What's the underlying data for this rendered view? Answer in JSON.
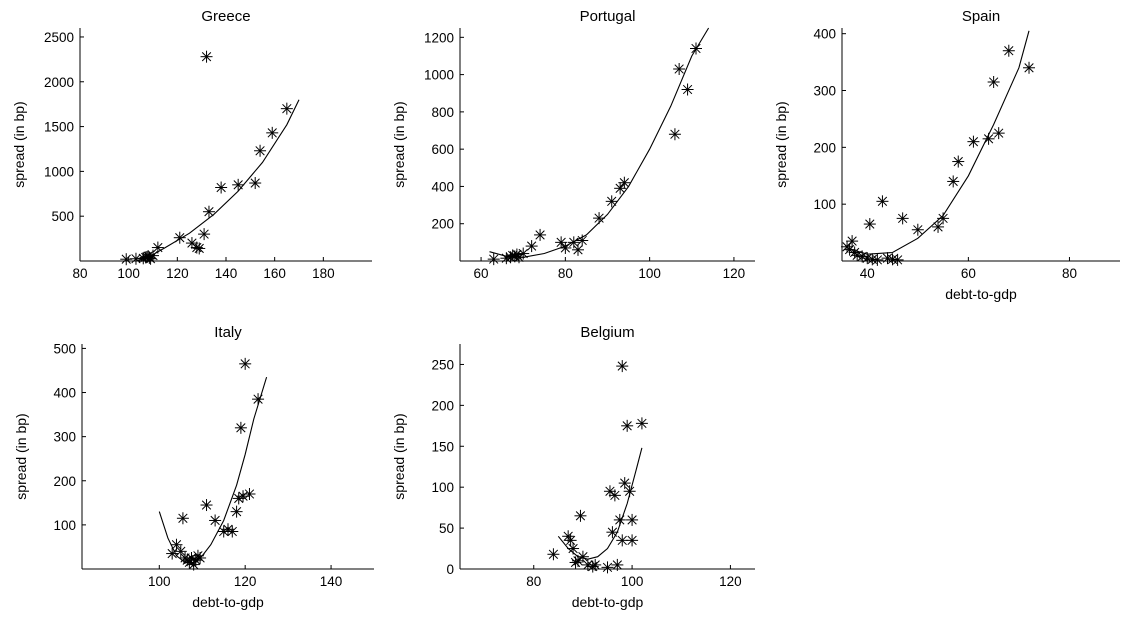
{
  "chart_data": [
    {
      "type": "scatter",
      "title": "Greece",
      "xlabel": "",
      "ylabel": "spread (in bp)",
      "xlim": [
        80,
        200
      ],
      "ylim": [
        0,
        2600
      ],
      "xticks": [
        80,
        100,
        120,
        140,
        160,
        180
      ],
      "yticks": [
        500,
        1000,
        1500,
        2000,
        2500
      ],
      "series": [
        {
          "marker": "asterisk",
          "points": [
            [
              99,
              20
            ],
            [
              103,
              25
            ],
            [
              106,
              30
            ],
            [
              107,
              40
            ],
            [
              107.5,
              45
            ],
            [
              108,
              55
            ],
            [
              108.5,
              35
            ],
            [
              109,
              25
            ],
            [
              110,
              60
            ],
            [
              112,
              150
            ],
            [
              121,
              260
            ],
            [
              126,
              200
            ],
            [
              128,
              150
            ],
            [
              129,
              140
            ],
            [
              131,
              300
            ],
            [
              133,
              550
            ],
            [
              132,
              2280
            ],
            [
              138,
              820
            ],
            [
              145,
              850
            ],
            [
              152,
              870
            ],
            [
              154,
              1230
            ],
            [
              159,
              1430
            ],
            [
              165,
              1700
            ]
          ]
        },
        {
          "type": "line",
          "points": [
            [
              103,
              0
            ],
            [
              108,
              40
            ],
            [
              115,
              150
            ],
            [
              125,
              310
            ],
            [
              135,
              520
            ],
            [
              145,
              780
            ],
            [
              155,
              1100
            ],
            [
              165,
              1520
            ],
            [
              170,
              1800
            ]
          ]
        }
      ]
    },
    {
      "type": "scatter",
      "title": "Portugal",
      "xlabel": "",
      "ylabel": "spread (in bp)",
      "xlim": [
        55,
        125
      ],
      "ylim": [
        0,
        1250
      ],
      "xticks": [
        60,
        80,
        100,
        120
      ],
      "yticks": [
        200,
        400,
        600,
        800,
        1000,
        1200
      ],
      "series": [
        {
          "marker": "asterisk",
          "points": [
            [
              63,
              10
            ],
            [
              66,
              15
            ],
            [
              67,
              20
            ],
            [
              67.5,
              30
            ],
            [
              68,
              25
            ],
            [
              68.5,
              35
            ],
            [
              69,
              20
            ],
            [
              70,
              40
            ],
            [
              72,
              80
            ],
            [
              74,
              140
            ],
            [
              79,
              100
            ],
            [
              80,
              70
            ],
            [
              82,
              100
            ],
            [
              83,
              60
            ],
            [
              84,
              110
            ],
            [
              88,
              230
            ],
            [
              91,
              320
            ],
            [
              93,
              390
            ],
            [
              94,
              420
            ],
            [
              106,
              680
            ],
            [
              107,
              1030
            ],
            [
              109,
              920
            ],
            [
              111,
              1140
            ]
          ]
        },
        {
          "type": "line",
          "points": [
            [
              62,
              50
            ],
            [
              66,
              25
            ],
            [
              70,
              20
            ],
            [
              75,
              40
            ],
            [
              80,
              80
            ],
            [
              85,
              140
            ],
            [
              90,
              250
            ],
            [
              95,
              400
            ],
            [
              100,
              600
            ],
            [
              105,
              830
            ],
            [
              110,
              1100
            ],
            [
              114,
              1250
            ]
          ]
        }
      ]
    },
    {
      "type": "scatter",
      "title": "Spain",
      "xlabel": "debt-to-gdp",
      "ylabel": "spread (in bp)",
      "xlim": [
        35,
        90
      ],
      "ylim": [
        0,
        410
      ],
      "xticks": [
        40,
        60,
        80
      ],
      "yticks": [
        100,
        200,
        300,
        400
      ],
      "series": [
        {
          "marker": "asterisk",
          "points": [
            [
              36,
              25
            ],
            [
              36.5,
              20
            ],
            [
              37,
              35
            ],
            [
              37.5,
              15
            ],
            [
              38,
              10
            ],
            [
              39,
              8
            ],
            [
              40,
              5
            ],
            [
              40.5,
              65
            ],
            [
              41,
              3
            ],
            [
              42,
              2
            ],
            [
              43,
              105
            ],
            [
              44,
              5
            ],
            [
              45,
              3
            ],
            [
              46,
              2
            ],
            [
              47,
              75
            ],
            [
              50,
              55
            ],
            [
              54,
              60
            ],
            [
              55,
              75
            ],
            [
              57,
              140
            ],
            [
              58,
              175
            ],
            [
              61,
              210
            ],
            [
              64,
              215
            ],
            [
              65,
              315
            ],
            [
              66,
              225
            ],
            [
              68,
              370
            ],
            [
              72,
              340
            ]
          ]
        },
        {
          "type": "line",
          "points": [
            [
              37,
              20
            ],
            [
              40,
              12
            ],
            [
              45,
              15
            ],
            [
              50,
              40
            ],
            [
              55,
              80
            ],
            [
              60,
              150
            ],
            [
              65,
              240
            ],
            [
              70,
              340
            ],
            [
              72,
              405
            ]
          ]
        }
      ]
    },
    {
      "type": "scatter",
      "title": "Italy",
      "xlabel": "debt-to-gdp",
      "ylabel": "spread (in bp)",
      "xlim": [
        82,
        150
      ],
      "ylim": [
        0,
        510
      ],
      "xticks": [
        100,
        120,
        140
      ],
      "yticks": [
        100,
        200,
        300,
        400,
        500
      ],
      "series": [
        {
          "marker": "asterisk",
          "points": [
            [
              103,
              35
            ],
            [
              104,
              55
            ],
            [
              105,
              40
            ],
            [
              105.5,
              115
            ],
            [
              106,
              25
            ],
            [
              106.5,
              20
            ],
            [
              107,
              15
            ],
            [
              107.5,
              25
            ],
            [
              108,
              10
            ],
            [
              108.5,
              20
            ],
            [
              109,
              30
            ],
            [
              109.5,
              25
            ],
            [
              111,
              145
            ],
            [
              113,
              110
            ],
            [
              115,
              85
            ],
            [
              116,
              90
            ],
            [
              117,
              85
            ],
            [
              118,
              130
            ],
            [
              118.5,
              160
            ],
            [
              119,
              320
            ],
            [
              119.5,
              165
            ],
            [
              120,
              465
            ],
            [
              121,
              170
            ],
            [
              123,
              385
            ]
          ]
        },
        {
          "type": "line",
          "points": [
            [
              100,
              130
            ],
            [
              102,
              70
            ],
            [
              104,
              30
            ],
            [
              106,
              15
            ],
            [
              108,
              15
            ],
            [
              110,
              30
            ],
            [
              112,
              55
            ],
            [
              115,
              110
            ],
            [
              118,
              190
            ],
            [
              120,
              260
            ],
            [
              122,
              340
            ],
            [
              125,
              435
            ]
          ]
        }
      ]
    },
    {
      "type": "scatter",
      "title": "Belgium",
      "xlabel": "debt-to-gdp",
      "ylabel": "spread (in bp)",
      "xlim": [
        65,
        125
      ],
      "ylim": [
        0,
        275
      ],
      "xticks": [
        80,
        100,
        120
      ],
      "yticks": [
        0,
        50,
        100,
        150,
        200,
        250
      ],
      "series": [
        {
          "marker": "asterisk",
          "points": [
            [
              84,
              18
            ],
            [
              87,
              40
            ],
            [
              87.5,
              35
            ],
            [
              88,
              25
            ],
            [
              88.5,
              8
            ],
            [
              89,
              10
            ],
            [
              89.5,
              65
            ],
            [
              90,
              15
            ],
            [
              91,
              5
            ],
            [
              92,
              3
            ],
            [
              92.5,
              5
            ],
            [
              95,
              2
            ],
            [
              95.5,
              95
            ],
            [
              96,
              45
            ],
            [
              96.5,
              90
            ],
            [
              97,
              5
            ],
            [
              97.5,
              60
            ],
            [
              98,
              35
            ],
            [
              98.5,
              105
            ],
            [
              98,
              248
            ],
            [
              99,
              175
            ],
            [
              99.5,
              95
            ],
            [
              100,
              60
            ],
            [
              100,
              35
            ],
            [
              102,
              178
            ]
          ]
        },
        {
          "type": "line",
          "points": [
            [
              85,
              40
            ],
            [
              87,
              25
            ],
            [
              89,
              15
            ],
            [
              91,
              12
            ],
            [
              93,
              15
            ],
            [
              95,
              25
            ],
            [
              97,
              45
            ],
            [
              99,
              80
            ],
            [
              101,
              125
            ],
            [
              102,
              148
            ]
          ]
        }
      ]
    }
  ]
}
